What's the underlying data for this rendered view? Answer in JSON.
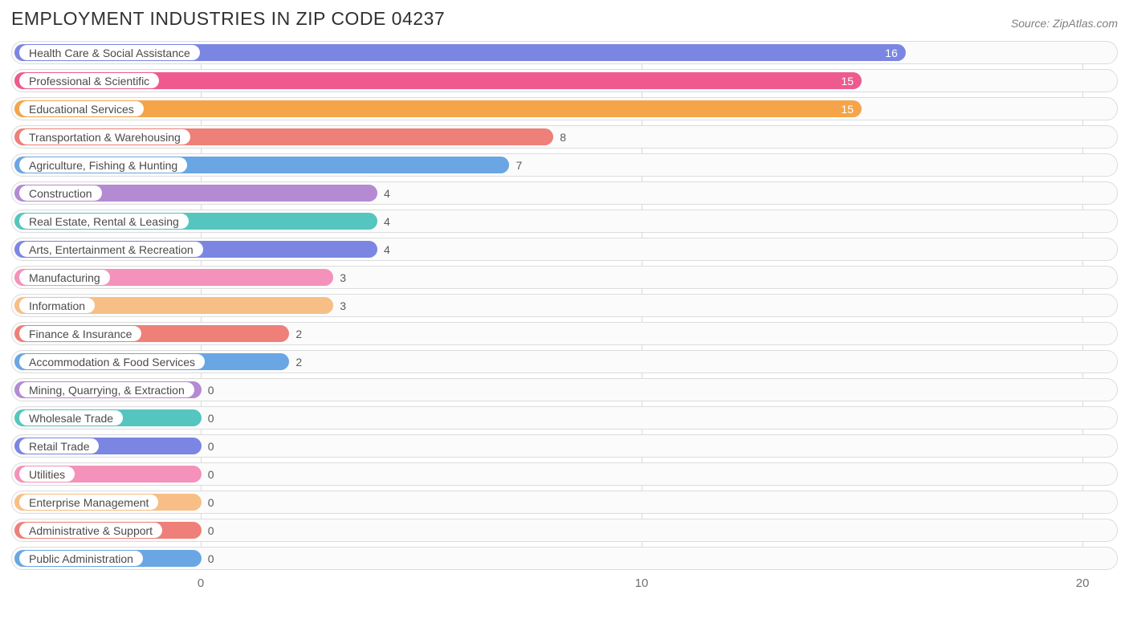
{
  "chart": {
    "type": "bar-horizontal",
    "title": "EMPLOYMENT INDUSTRIES IN ZIP CODE 04237",
    "source": "Source: ZipAtlas.com",
    "background_color": "#ffffff",
    "row_bg_color": "#fbfbfb",
    "row_border_color": "#dcdcdc",
    "grid_color": "#d8d8d8",
    "title_color": "#303030",
    "title_fontsize": 23,
    "label_fontsize": 14,
    "axis_fontsize": 15,
    "xmin": -4.3,
    "xmax": 20.8,
    "xticks": [
      0,
      10,
      20
    ],
    "min_bar_value": -4.3,
    "value_inside_threshold": 12,
    "items": [
      {
        "label": "Health Care & Social Assistance",
        "value": 16,
        "color": "#7b86e3"
      },
      {
        "label": "Professional & Scientific",
        "value": 15,
        "color": "#ee5a8e"
      },
      {
        "label": "Educational Services",
        "value": 15,
        "color": "#f5a44a"
      },
      {
        "label": "Transportation & Warehousing",
        "value": 8,
        "color": "#ee7f79"
      },
      {
        "label": "Agriculture, Fishing & Hunting",
        "value": 7,
        "color": "#6aa6e3"
      },
      {
        "label": "Construction",
        "value": 4,
        "color": "#b48ad2"
      },
      {
        "label": "Real Estate, Rental & Leasing",
        "value": 4,
        "color": "#55c5bf"
      },
      {
        "label": "Arts, Entertainment & Recreation",
        "value": 4,
        "color": "#7b86e3"
      },
      {
        "label": "Manufacturing",
        "value": 3,
        "color": "#f492bb"
      },
      {
        "label": "Information",
        "value": 3,
        "color": "#f7bf85"
      },
      {
        "label": "Finance & Insurance",
        "value": 2,
        "color": "#ee7f79"
      },
      {
        "label": "Accommodation & Food Services",
        "value": 2,
        "color": "#6aa6e3"
      },
      {
        "label": "Mining, Quarrying, & Extraction",
        "value": 0,
        "color": "#b48ad2"
      },
      {
        "label": "Wholesale Trade",
        "value": 0,
        "color": "#55c5bf"
      },
      {
        "label": "Retail Trade",
        "value": 0,
        "color": "#7b86e3"
      },
      {
        "label": "Utilities",
        "value": 0,
        "color": "#f492bb"
      },
      {
        "label": "Enterprise Management",
        "value": 0,
        "color": "#f7bf85"
      },
      {
        "label": "Administrative & Support",
        "value": 0,
        "color": "#ee7f79"
      },
      {
        "label": "Public Administration",
        "value": 0,
        "color": "#6aa6e3"
      }
    ]
  }
}
